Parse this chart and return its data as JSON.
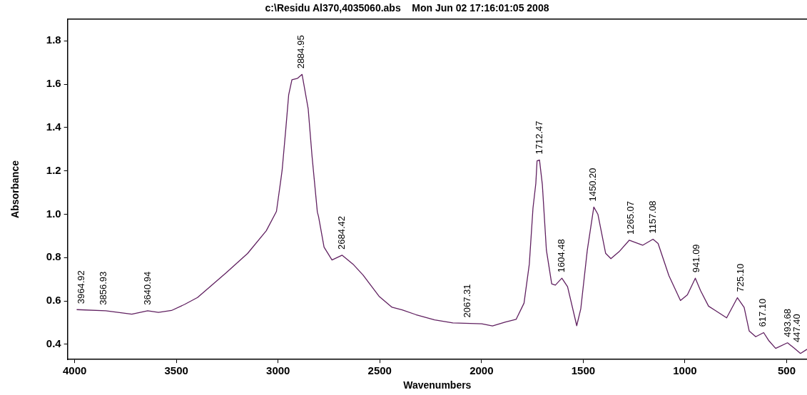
{
  "chart_data": {
    "type": "line",
    "title": "c:\\Residu Al370,4035060.abs    Mon Jun 02 17:16:01:05 2008",
    "xlabel": "Wavenumbers",
    "ylabel": "Absorbance",
    "x": [
      3990,
      3847,
      3719,
      3641,
      3588,
      3524,
      3460,
      3396,
      3332,
      3254,
      3150,
      3058,
      3008,
      2987,
      2980,
      2962,
      2948,
      2932,
      2904,
      2882,
      2852,
      2833,
      2807,
      2801,
      2774,
      2735,
      2685,
      2632,
      2582,
      2504,
      2440,
      2390,
      2323,
      2231,
      2141,
      1999,
      1946,
      1882,
      1830,
      1791,
      1765,
      1747,
      1733,
      1727,
      1715,
      1701,
      1681,
      1655,
      1637,
      1605,
      1577,
      1532,
      1512,
      1480,
      1448,
      1428,
      1390,
      1364,
      1324,
      1274,
      1208,
      1157,
      1132,
      1079,
      1022,
      988,
      949,
      923,
      884,
      852,
      795,
      742,
      709,
      684,
      652,
      613,
      587,
      554,
      496,
      464,
      432,
      400
    ],
    "series": [
      {
        "color": "#602060",
        "values": [
          0.56,
          0.555,
          0.539,
          0.555,
          0.547,
          0.556,
          0.584,
          0.616,
          0.668,
          0.731,
          0.819,
          0.924,
          1.013,
          1.155,
          1.204,
          1.394,
          1.55,
          1.62,
          1.627,
          1.645,
          1.486,
          1.267,
          1.01,
          0.989,
          0.848,
          0.789,
          0.811,
          0.77,
          0.719,
          0.622,
          0.571,
          0.559,
          0.537,
          0.513,
          0.499,
          0.495,
          0.485,
          0.503,
          0.515,
          0.59,
          0.77,
          1.028,
          1.142,
          1.246,
          1.25,
          1.137,
          0.834,
          0.679,
          0.673,
          0.705,
          0.666,
          0.486,
          0.564,
          0.834,
          1.033,
          1.0,
          0.82,
          0.795,
          0.827,
          0.88,
          0.857,
          0.885,
          0.865,
          0.717,
          0.602,
          0.628,
          0.705,
          0.647,
          0.576,
          0.557,
          0.522,
          0.615,
          0.57,
          0.461,
          0.435,
          0.454,
          0.416,
          0.381,
          0.407,
          0.383,
          0.358,
          0.377
        ]
      }
    ],
    "xlim": [
      4035,
      400
    ],
    "xticks": [
      4000,
      3500,
      3000,
      2500,
      2000,
      1500,
      1000,
      500
    ],
    "ylim": [
      0.33,
      1.9
    ],
    "yticks": [
      {
        "value": 0.4,
        "label": "0.4"
      },
      {
        "value": 0.6,
        "label": "0.6"
      },
      {
        "value": 0.8,
        "label": "0.8"
      },
      {
        "value": 1.0,
        "label": "1.0"
      },
      {
        "value": 1.2,
        "label": "1.2"
      },
      {
        "value": 1.4,
        "label": "1.4"
      },
      {
        "value": 1.6,
        "label": "1.6"
      },
      {
        "value": 1.8,
        "label": "1.8"
      }
    ],
    "grid": false,
    "legend": false,
    "marker": "none",
    "line_style": "solid",
    "annotations": [
      {
        "text": "3964.92",
        "x": 3964.92,
        "y": 0.56
      },
      {
        "text": "3856.93",
        "x": 3856.93,
        "y": 0.555
      },
      {
        "text": "3640.94",
        "x": 3640.94,
        "y": 0.555
      },
      {
        "text": "2884.95",
        "x": 2884.95,
        "y": 1.645
      },
      {
        "text": "2684.42",
        "x": 2684.42,
        "y": 0.811
      },
      {
        "text": "2067.31",
        "x": 2067.31,
        "y": 0.497
      },
      {
        "text": "1712.47",
        "x": 1712.47,
        "y": 1.25
      },
      {
        "text": "1604.48",
        "x": 1604.48,
        "y": 0.705
      },
      {
        "text": "1450.20",
        "x": 1450.2,
        "y": 1.033
      },
      {
        "text": "1265.07",
        "x": 1265.07,
        "y": 0.88
      },
      {
        "text": "1157.08",
        "x": 1157.08,
        "y": 0.885
      },
      {
        "text": "941.09",
        "x": 941.09,
        "y": 0.705
      },
      {
        "text": "725.10",
        "x": 725.1,
        "y": 0.615
      },
      {
        "text": "617.10",
        "x": 617.1,
        "y": 0.454
      },
      {
        "text": "493.68",
        "x": 493.68,
        "y": 0.407
      },
      {
        "text": "447.40",
        "x": 447.4,
        "y": 0.383
      }
    ]
  }
}
